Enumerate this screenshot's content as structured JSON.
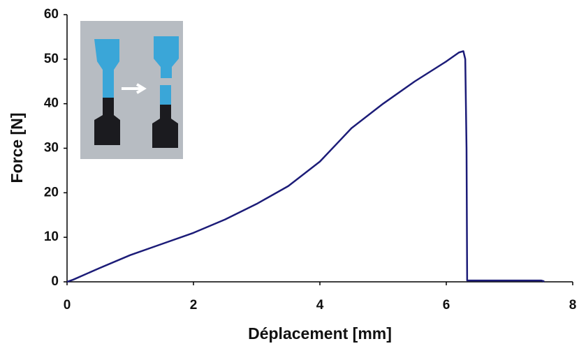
{
  "chart_data": {
    "type": "line",
    "x_label": "Déplacement [mm]",
    "y_label": "Force [N]",
    "xlim": [
      0,
      8
    ],
    "ylim": [
      0,
      60
    ],
    "xticks": [
      0,
      2,
      4,
      6,
      8
    ],
    "yticks": [
      0,
      10,
      20,
      30,
      40,
      50,
      60
    ],
    "series": [
      {
        "color": "#1c1c78",
        "x": [
          0,
          0.1,
          0.5,
          1,
          1.5,
          2,
          2.5,
          3,
          3.5,
          4,
          4.3,
          4.5,
          5,
          5.5,
          6,
          6.2,
          6.27,
          6.3,
          6.32,
          6.33,
          7,
          7.5,
          7.55
        ],
        "values": [
          0,
          0.5,
          3,
          6,
          8.5,
          11,
          14,
          17.5,
          21.5,
          27,
          31.5,
          34.5,
          40,
          45,
          49.5,
          51.5,
          51.8,
          50,
          30,
          0.3,
          0.3,
          0.3,
          0.1
        ]
      }
    ]
  }
}
